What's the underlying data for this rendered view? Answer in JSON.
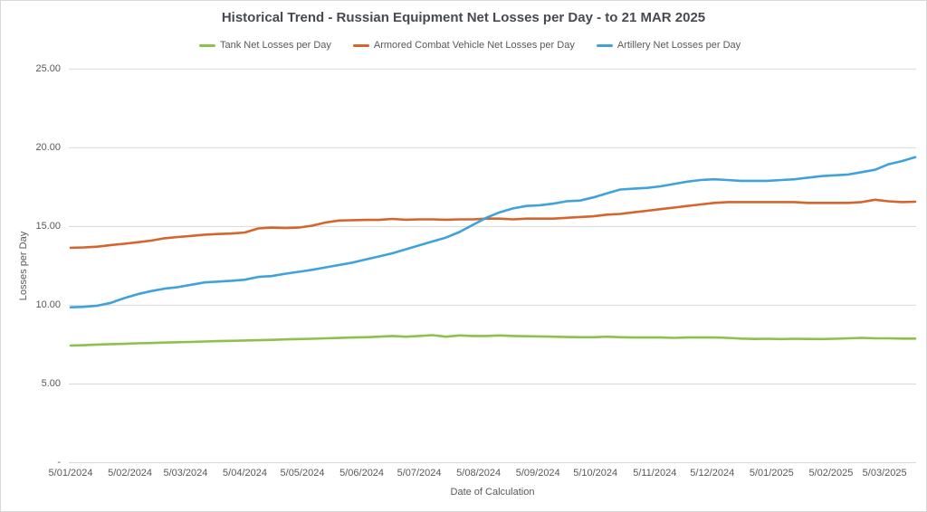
{
  "chart": {
    "title": "Historical Trend - Russian Equipment Net Losses per Day - to 21 MAR 2025",
    "x_axis_title": "Date of Calculation",
    "y_axis_title": "Losses per Day"
  },
  "colors": {
    "tank_green": "#8CC24A",
    "acv_orange": "#D4652C",
    "artillery_blue": "#3FA2DB",
    "gridline": "#D9D9D9",
    "axis_text": "#595959",
    "title_text": "#474B51"
  },
  "chart_data": {
    "type": "line",
    "title": "Historical Trend - Russian Equipment Net Losses per Day - to 21 MAR 2025",
    "xlabel": "Date of Calculation",
    "ylabel": "Losses per Day",
    "ylim": [
      0,
      25
    ],
    "grid": "horizontal",
    "legend_position": "top-center",
    "x_sampling": "weekly points from 5/01/2024 (day 0) to 21 MAR 2025 (day 441)",
    "x_total_days": 441,
    "x_tick_labels": [
      "5/01/2024",
      "5/02/2024",
      "5/03/2024",
      "5/04/2024",
      "5/05/2024",
      "5/06/2024",
      "5/07/2024",
      "5/08/2024",
      "5/09/2024",
      "5/10/2024",
      "5/11/2024",
      "5/12/2024",
      "5/01/2025",
      "5/02/2025",
      "5/03/2025"
    ],
    "x_tick_days": [
      0,
      31,
      60,
      91,
      121,
      152,
      182,
      213,
      244,
      274,
      305,
      335,
      366,
      397,
      425
    ],
    "y_tick_labels": [
      "25.00",
      "20.00",
      "15.00",
      "10.00",
      "5.00",
      "-"
    ],
    "y_tick_values": [
      25,
      20,
      15,
      10,
      5,
      0
    ],
    "series": [
      {
        "name": "Tank Net Losses per Day",
        "color": "#8CC24A",
        "values": [
          7.44,
          7.46,
          7.5,
          7.53,
          7.55,
          7.58,
          7.6,
          7.63,
          7.65,
          7.67,
          7.7,
          7.72,
          7.74,
          7.76,
          7.78,
          7.8,
          7.83,
          7.85,
          7.87,
          7.9,
          7.92,
          7.95,
          7.97,
          8.0,
          8.05,
          8.0,
          8.05,
          8.1,
          8.0,
          8.08,
          8.05,
          8.05,
          8.08,
          8.05,
          8.03,
          8.02,
          8.0,
          7.98,
          7.97,
          7.97,
          8.0,
          7.97,
          7.95,
          7.95,
          7.95,
          7.93,
          7.95,
          7.95,
          7.95,
          7.93,
          7.88,
          7.86,
          7.87,
          7.85,
          7.87,
          7.86,
          7.85,
          7.87,
          7.9,
          7.93,
          7.9,
          7.9,
          7.88,
          7.88
        ]
      },
      {
        "name": "Armored Combat Vehicle Net Losses per Day",
        "color": "#D4652C",
        "values": [
          13.65,
          13.67,
          13.72,
          13.82,
          13.9,
          14.0,
          14.1,
          14.25,
          14.33,
          14.4,
          14.48,
          14.52,
          14.55,
          14.62,
          14.88,
          14.93,
          14.9,
          14.93,
          15.05,
          15.25,
          15.38,
          15.4,
          15.42,
          15.42,
          15.48,
          15.43,
          15.45,
          15.45,
          15.43,
          15.45,
          15.45,
          15.5,
          15.5,
          15.45,
          15.5,
          15.5,
          15.5,
          15.55,
          15.6,
          15.65,
          15.75,
          15.8,
          15.9,
          16.0,
          16.1,
          16.2,
          16.3,
          16.4,
          16.5,
          16.55,
          16.55,
          16.55,
          16.55,
          16.55,
          16.55,
          16.5,
          16.5,
          16.5,
          16.5,
          16.55,
          16.7,
          16.6,
          16.55,
          16.57
        ]
      },
      {
        "name": "Artillery Net Losses per Day",
        "color": "#3FA2DB",
        "values": [
          9.87,
          9.9,
          9.97,
          10.15,
          10.45,
          10.7,
          10.9,
          11.05,
          11.15,
          11.3,
          11.45,
          11.5,
          11.55,
          11.62,
          11.8,
          11.85,
          12.0,
          12.12,
          12.25,
          12.4,
          12.55,
          12.7,
          12.9,
          13.1,
          13.3,
          13.55,
          13.8,
          14.05,
          14.3,
          14.65,
          15.1,
          15.55,
          15.9,
          16.15,
          16.3,
          16.35,
          16.45,
          16.6,
          16.65,
          16.85,
          17.1,
          17.35,
          17.4,
          17.45,
          17.55,
          17.7,
          17.85,
          17.95,
          18.0,
          17.95,
          17.9,
          17.9,
          17.9,
          17.95,
          18.0,
          18.1,
          18.2,
          18.25,
          18.3,
          18.45,
          18.6,
          18.95,
          19.15,
          19.4
        ]
      }
    ]
  }
}
